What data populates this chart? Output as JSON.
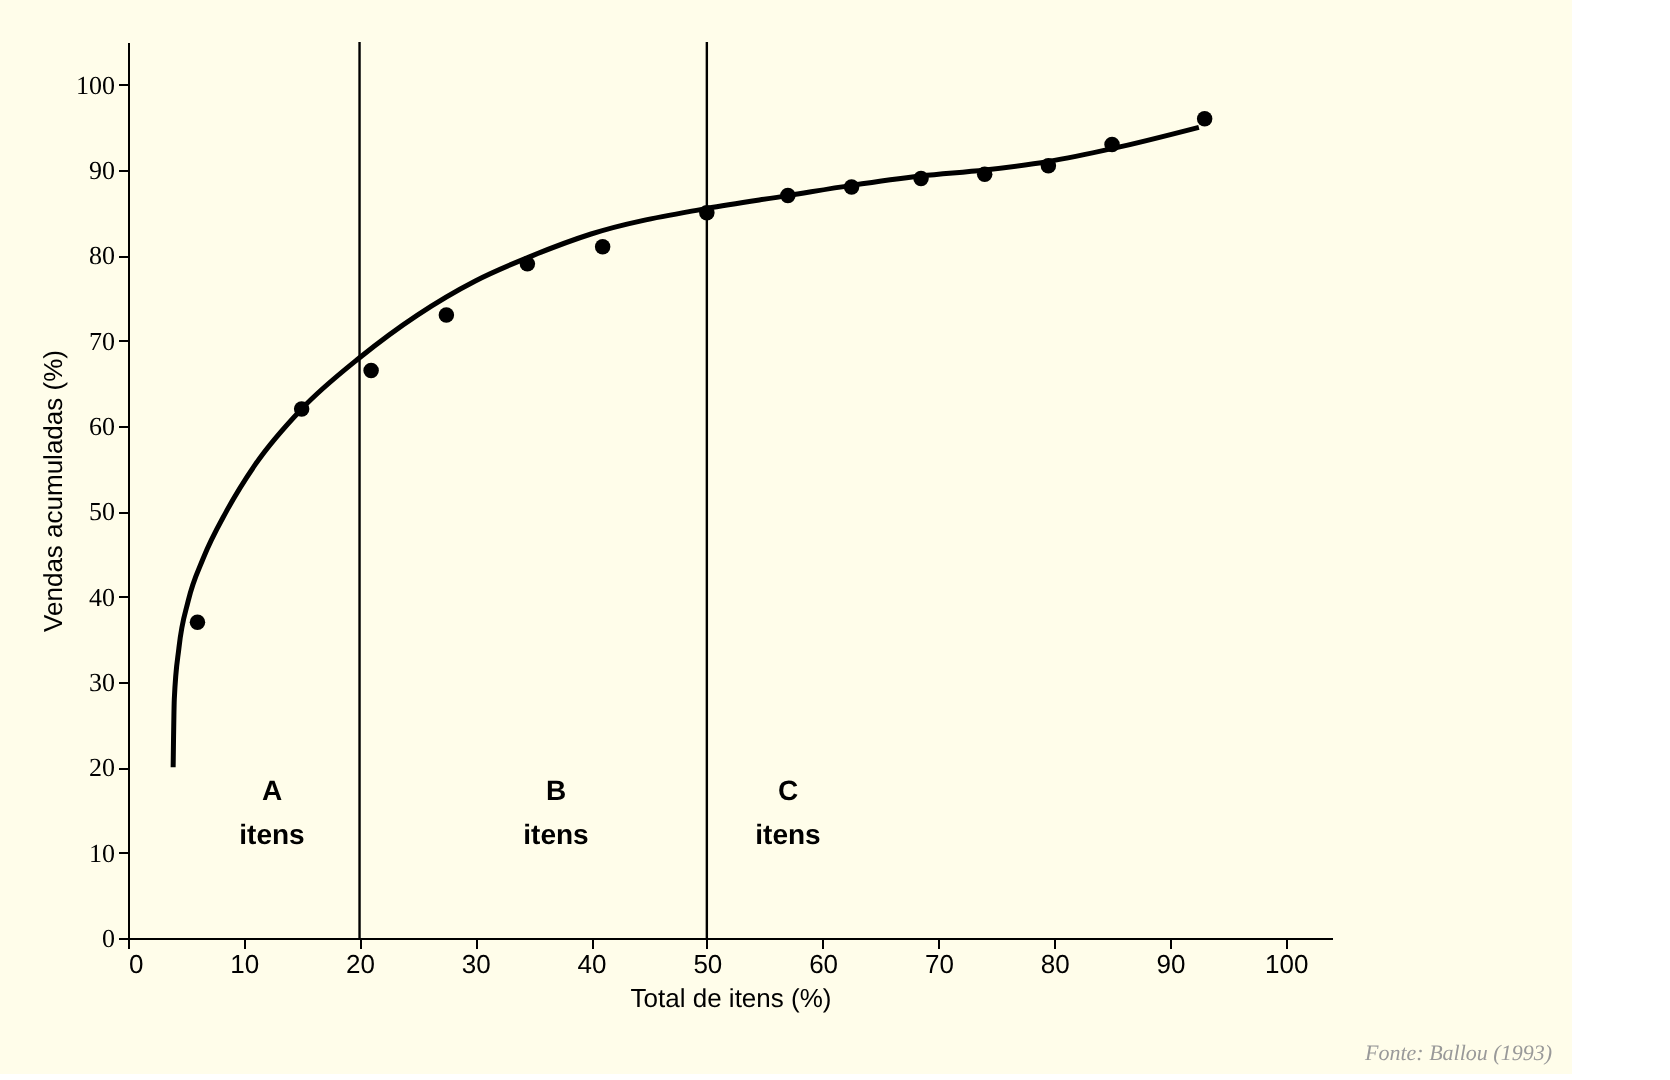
{
  "chart_data": {
    "type": "scatter",
    "xlabel": "Total de itens (%)",
    "ylabel": "Vendas acumuladas (%)",
    "xlim": [
      0,
      104
    ],
    "ylim": [
      0,
      105
    ],
    "xticks": [
      0,
      10,
      20,
      30,
      40,
      50,
      60,
      70,
      80,
      90,
      100
    ],
    "yticks": [
      0,
      10,
      20,
      30,
      40,
      50,
      60,
      70,
      80,
      90,
      100
    ],
    "grid": false,
    "series": [
      {
        "type": "line",
        "color": "#000000",
        "marker": "none",
        "line_style": "solid",
        "x": [
          3.9,
          4.0,
          4.4,
          5.2,
          6.5,
          8.5,
          11,
          15,
          20,
          25,
          30,
          35,
          40,
          50,
          57,
          62.5,
          68.5,
          74,
          79.5,
          85,
          92.5
        ],
        "values": [
          20,
          28,
          34,
          39.5,
          44.5,
          50,
          55.5,
          62,
          68,
          73,
          77,
          80,
          82.5,
          85.5,
          87,
          88.2,
          89.3,
          90,
          91,
          92.5,
          95
        ]
      },
      {
        "color": "#000000",
        "marker": "circle",
        "x": [
          6,
          15,
          21,
          27.5,
          34.5,
          41,
          50,
          57,
          62.5,
          68.5,
          74,
          79.5,
          85,
          93
        ],
        "values": [
          37,
          62,
          66.5,
          73,
          79,
          81,
          85,
          87,
          88,
          89,
          89.5,
          90.5,
          93,
          96
        ]
      }
    ],
    "ref_lines": [
      {
        "axis": "x",
        "value": 20,
        "color": "#000000"
      },
      {
        "axis": "x",
        "value": 50,
        "color": "#000000"
      }
    ],
    "annotations": [
      "A\nitens",
      "B\nitens",
      "C\nitens",
      "Fonte: Ballou (1993)"
    ]
  }
}
